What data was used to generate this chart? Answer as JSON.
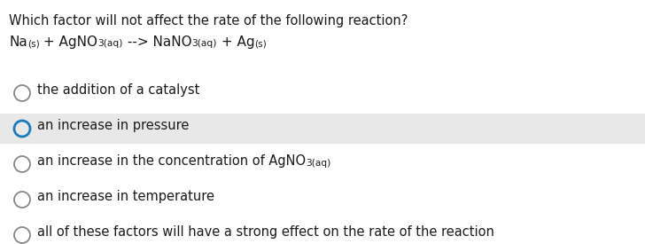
{
  "title_line1": "Which factor will not affect the rate of the following reaction?",
  "eq_parts": [
    {
      "text": "Na",
      "sub": false
    },
    {
      "text": "(s)",
      "sub": true
    },
    {
      "text": " + AgNO",
      "sub": false
    },
    {
      "text": "3(aq)",
      "sub": true
    },
    {
      "text": " --> NaNO",
      "sub": false
    },
    {
      "text": "3(aq)",
      "sub": true
    },
    {
      "text": " + Ag",
      "sub": false
    },
    {
      "text": "(s)",
      "sub": true
    }
  ],
  "options": [
    {
      "parts": [
        {
          "text": "the addition of a catalyst",
          "sub": false
        }
      ],
      "selected": false,
      "highlighted": false,
      "circle_color": "#888888"
    },
    {
      "parts": [
        {
          "text": "an increase in pressure",
          "sub": false
        }
      ],
      "selected": true,
      "highlighted": true,
      "circle_color": "#1a7abf"
    },
    {
      "parts": [
        {
          "text": "an increase in the concentration of AgNO",
          "sub": false
        },
        {
          "text": "3(aq)",
          "sub": true
        }
      ],
      "selected": false,
      "highlighted": false,
      "circle_color": "#888888"
    },
    {
      "parts": [
        {
          "text": "an increase in temperature",
          "sub": false
        }
      ],
      "selected": false,
      "highlighted": false,
      "circle_color": "#888888"
    },
    {
      "parts": [
        {
          "text": "all of these factors will have a strong effect on the rate of the reaction",
          "sub": false
        }
      ],
      "selected": false,
      "highlighted": false,
      "circle_color": "#888888"
    }
  ],
  "bg_color": "#ffffff",
  "highlight_color": "#e8e8e8",
  "title_fs": 10.5,
  "eq_fs": 11.0,
  "option_fs": 10.5,
  "text_color": "#1a1a1a",
  "fig_width": 7.28,
  "fig_height": 2.75,
  "dpi": 100
}
